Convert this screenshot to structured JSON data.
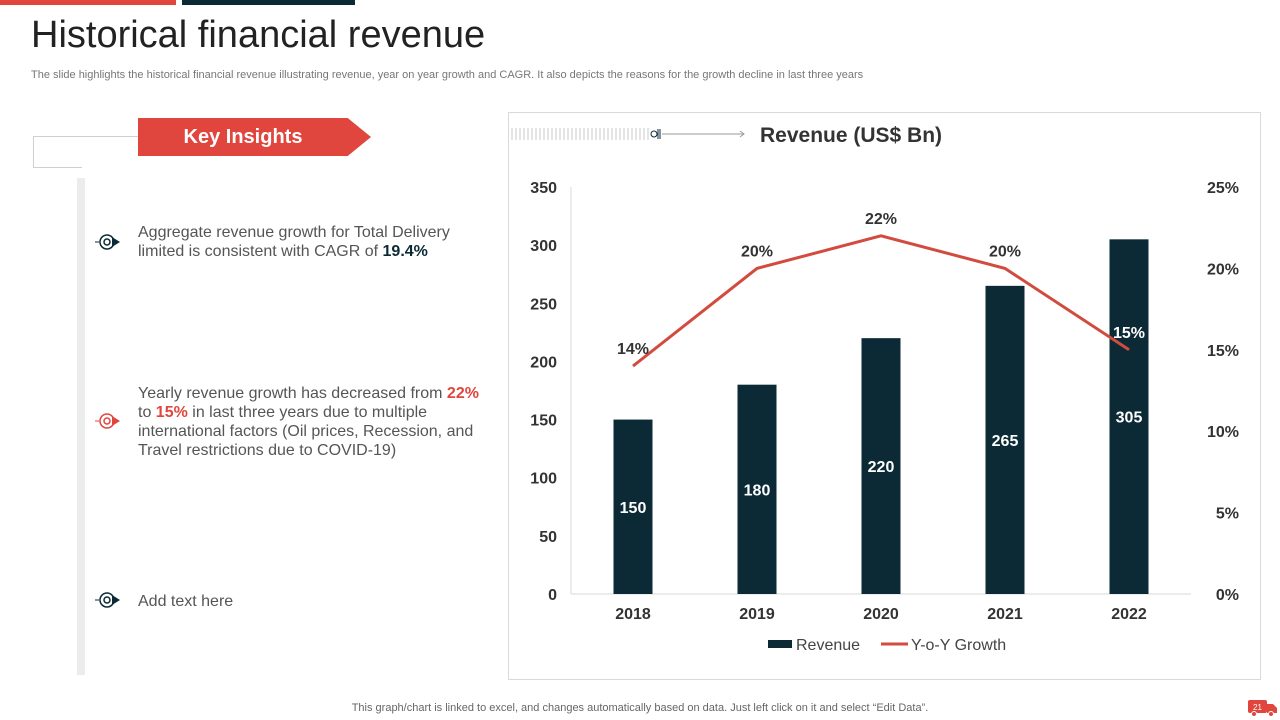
{
  "header": {
    "title": "Historical financial revenue",
    "subtitle": "The slide highlights the historical financial revenue illustrating revenue, year on year growth and CAGR. It also depicts the reasons for the growth decline in last three years"
  },
  "insights": {
    "banner_label": "Key Insights",
    "items": [
      {
        "icon": "target-icon",
        "parts": [
          "Aggregate revenue growth for Total Delivery limited is consistent with CAGR of ",
          "19.4%"
        ]
      },
      {
        "icon": "target-icon",
        "parts": [
          "Yearly revenue growth has decreased from ",
          "22%",
          " to ",
          "15%",
          " in last three years due to multiple international factors (Oil prices, Recession, and Travel restrictions due to COVID-19)"
        ]
      },
      {
        "icon": "target-icon",
        "parts": [
          "Add text here"
        ]
      }
    ]
  },
  "colors": {
    "accent_red": "#e0463e",
    "navy": "#0b2a35",
    "line_red": "#d24b3f"
  },
  "chart_data": {
    "type": "bar",
    "title": "Revenue (US$ Bn)",
    "categories": [
      "2018",
      "2019",
      "2020",
      "2021",
      "2022"
    ],
    "series": [
      {
        "name": "Revenue",
        "kind": "bar",
        "axis": "left",
        "values": [
          150,
          180,
          220,
          265,
          305
        ],
        "labels": [
          "150",
          "180",
          "220",
          "265",
          "305"
        ]
      },
      {
        "name": "Y-o-Y Growth",
        "kind": "line",
        "axis": "right",
        "values": [
          14,
          20,
          22,
          20,
          15
        ],
        "labels": [
          "14%",
          "20%",
          "22%",
          "20%",
          "15%"
        ]
      }
    ],
    "y_left": {
      "min": 0,
      "max": 350,
      "ticks": [
        "0",
        "50",
        "100",
        "150",
        "200",
        "250",
        "300",
        "350"
      ]
    },
    "y_right": {
      "min": 0,
      "max": 25,
      "ticks": [
        "0%",
        "5%",
        "10%",
        "15%",
        "20%",
        "25%"
      ]
    },
    "legend": [
      "Revenue",
      "Y-o-Y Growth"
    ],
    "legend_position": "bottom"
  },
  "footer": {
    "note": "This graph/chart is linked to excel, and changes automatically based on data. Just left click on it and select “Edit Data”.",
    "page_number": "21"
  }
}
